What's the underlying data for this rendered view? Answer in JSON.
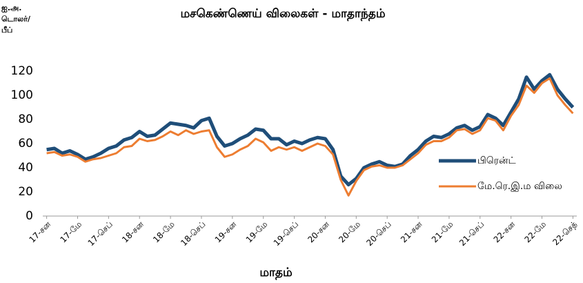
{
  "chart_data": {
    "type": "line",
    "title": "மசகெண்ணெய் விலைகள் - மாதாந்தம்",
    "y_label": [
      "ஐ.அ.",
      "டொலர்/",
      "பீப்"
    ],
    "x_label": "மாதம்",
    "categories": [
      "17-சன",
      null,
      null,
      null,
      "17-மே",
      null,
      null,
      null,
      "17-செப்",
      null,
      null,
      null,
      "18-சன",
      null,
      null,
      null,
      "18-மே",
      null,
      null,
      null,
      "18-செப்",
      null,
      null,
      null,
      "19-சன",
      null,
      null,
      null,
      "19-மே",
      null,
      null,
      null,
      "19-செப்",
      null,
      null,
      null,
      "20-சன",
      null,
      null,
      null,
      "20-மே",
      null,
      null,
      null,
      "20-செப்",
      null,
      null,
      null,
      "21-சன",
      null,
      null,
      null,
      "21-மே",
      null,
      null,
      null,
      "21-செப்",
      null,
      null,
      null,
      "22-சன",
      null,
      null,
      null,
      "22-மே",
      null,
      null,
      null,
      "22-செத்"
    ],
    "series": [
      {
        "name": "பிரென்ட்",
        "color": "#1f4e79",
        "values": [
          55,
          56,
          52,
          54,
          51,
          47,
          49,
          52,
          56,
          58,
          63,
          65,
          70,
          66,
          67,
          72,
          77,
          76,
          75,
          73,
          79,
          81,
          66,
          58,
          60,
          64,
          67,
          72,
          71,
          64,
          64,
          59,
          62,
          60,
          63,
          65,
          64,
          55,
          33,
          26,
          31,
          40,
          43,
          45,
          42,
          41,
          43,
          50,
          55,
          62,
          66,
          65,
          68,
          73,
          75,
          71,
          74,
          84,
          81,
          75,
          86,
          97,
          115,
          105,
          112,
          117,
          105,
          97,
          90
        ]
      },
      {
        "name": "மே.ரெ.இ.ம விலை",
        "color": "#ed7d31",
        "values": [
          52,
          53,
          50,
          51,
          49,
          45,
          47,
          48,
          50,
          52,
          57,
          58,
          64,
          62,
          63,
          66,
          70,
          67,
          71,
          68,
          70,
          71,
          57,
          49,
          51,
          55,
          58,
          64,
          61,
          54,
          57,
          55,
          57,
          54,
          57,
          60,
          58,
          51,
          30,
          17,
          29,
          38,
          41,
          42,
          40,
          40,
          42,
          47,
          52,
          59,
          62,
          62,
          65,
          71,
          72,
          68,
          71,
          81,
          79,
          71,
          83,
          92,
          108,
          102,
          110,
          114,
          100,
          92,
          85
        ]
      }
    ],
    "ylim": [
      0,
      120
    ],
    "yticks": [
      0,
      20,
      40,
      60,
      80,
      100,
      120
    ]
  }
}
